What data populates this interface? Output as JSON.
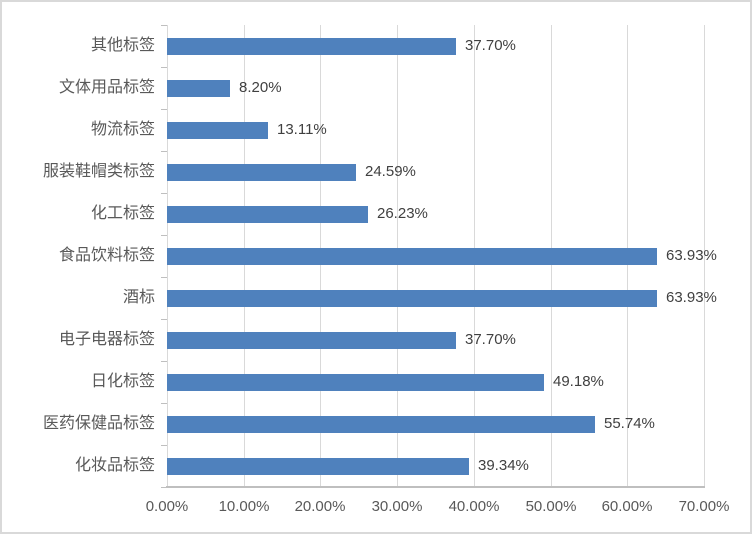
{
  "chart_data": {
    "type": "bar",
    "orientation": "horizontal",
    "title": "",
    "xlabel": "",
    "ylabel": "",
    "categories": [
      "其他标签",
      "文体用品标签",
      "物流标签",
      "服装鞋帽类标签",
      "化工标签",
      "食品饮料标签",
      "酒标",
      "电子电器标签",
      "日化标签",
      "医药保健品标签",
      "化妆品标签"
    ],
    "category_order": "top-to-bottom",
    "values": [
      37.7,
      8.2,
      13.11,
      24.59,
      26.23,
      63.93,
      63.93,
      37.7,
      49.18,
      55.74,
      39.34
    ],
    "data_labels": [
      "37.70%",
      "8.20%",
      "13.11%",
      "24.59%",
      "26.23%",
      "63.93%",
      "63.93%",
      "37.70%",
      "49.18%",
      "55.74%",
      "39.34%"
    ],
    "x_tick_labels": [
      "0.00%",
      "10.00%",
      "20.00%",
      "30.00%",
      "40.00%",
      "50.00%",
      "60.00%",
      "70.00%"
    ],
    "xlim": [
      0,
      70
    ],
    "grid": "vertical-only",
    "legend": "none",
    "colors": {
      "bar": "#4f81bd",
      "gridline": "#d9d9d9",
      "axis_line": "#bfbfbf",
      "data_label_text": "#404040",
      "axis_label_text": "#595959",
      "frame_border": "#d9d9d9",
      "background": "#ffffff"
    }
  }
}
